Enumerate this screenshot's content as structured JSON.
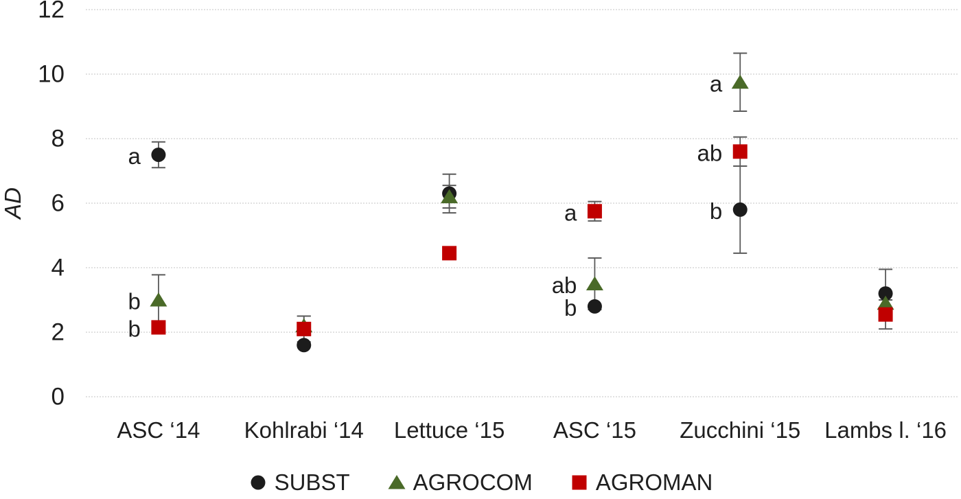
{
  "chart_data": {
    "type": "scatter",
    "title": "",
    "xlabel": "",
    "ylabel": "AD",
    "ylim": [
      0,
      12
    ],
    "yticks": [
      0,
      2,
      4,
      6,
      8,
      10,
      12
    ],
    "grid": true,
    "legend_position": "bottom",
    "categories": [
      "ASC ‘14",
      "Kohlrabi ‘14",
      "Lettuce ‘15",
      "ASC ‘15",
      "Zucchini ‘15",
      "Lambs l. ‘16"
    ],
    "series": [
      {
        "name": "SUBST",
        "marker": "circle",
        "color": "#1c1c1c",
        "values": [
          7.5,
          1.6,
          6.3,
          2.8,
          5.8,
          3.2
        ],
        "errors": [
          0.4,
          0,
          0.6,
          0,
          1.35,
          0.75
        ],
        "letters": [
          "a",
          "",
          "",
          "b",
          "b",
          ""
        ]
      },
      {
        "name": "AGROCOM",
        "marker": "triangle",
        "color": "#4a6a28",
        "values": [
          3.0,
          2.2,
          6.2,
          3.5,
          9.75,
          2.9
        ],
        "errors": [
          0.78,
          0.3,
          0.35,
          0.8,
          0.9,
          0
        ],
        "letters": [
          "b",
          "",
          "",
          "ab",
          "a",
          ""
        ]
      },
      {
        "name": "AGROMAN",
        "marker": "square",
        "color": "#c00000",
        "values": [
          2.15,
          2.1,
          4.45,
          5.75,
          7.6,
          2.55
        ],
        "errors": [
          0,
          0.4,
          0,
          0.3,
          0.45,
          0.45
        ],
        "letters": [
          "b",
          "",
          "",
          "a",
          "ab",
          ""
        ]
      }
    ],
    "style": {
      "error_bar_color": "#5a5a5a",
      "gridline_color": "#cfcfcf",
      "text_color": "#1f1f1f"
    }
  }
}
